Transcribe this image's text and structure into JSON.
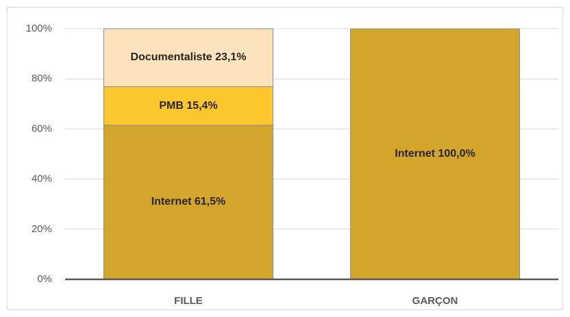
{
  "chart_data": {
    "type": "stacked_bar",
    "categories": [
      "FILLE",
      "GARÇON"
    ],
    "series": [
      {
        "color": "#d4a52b",
        "values": [
          61.5,
          100
        ],
        "value_labels": [
          "Internet 61,5%",
          "Internet 100,0%"
        ]
      },
      {
        "color": "#fcc72c",
        "values": [
          15.4,
          null
        ],
        "value_labels": [
          "PMB 15,4%",
          null
        ]
      },
      {
        "color": "#fde3bb",
        "values": [
          23.1,
          null
        ],
        "value_labels": [
          "Documentaliste 23,1%",
          null
        ]
      }
    ],
    "ylim": [
      0,
      100
    ],
    "yticks": [
      {
        "value": 0,
        "label": "0%"
      },
      {
        "value": 20,
        "label": "20%"
      },
      {
        "value": 40,
        "label": "40%"
      },
      {
        "value": 60,
        "label": "60%"
      },
      {
        "value": 80,
        "label": "80%"
      },
      {
        "value": 100,
        "label": "100%"
      }
    ],
    "grid": true
  }
}
